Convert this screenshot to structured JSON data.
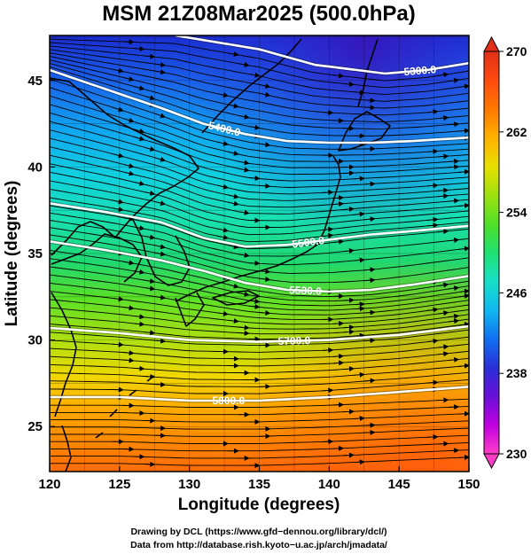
{
  "title": "MSM 21Z08Mar2025 (500.0hPa)",
  "credits": {
    "line1": "Drawing by DCL (https://www.gfd−dennou.org/library/dcl/)",
    "line2": "Data from http://database.rish.kyoto−u.ac.jp/arch/jmadata/"
  },
  "chart_data": {
    "type": "heatmap",
    "xlabel": "Longitude (degrees)",
    "ylabel": "Latitude  (degrees)",
    "xlim": [
      120,
      150
    ],
    "ylim": [
      22.4,
      47.6
    ],
    "xticks": [
      120,
      125,
      130,
      135,
      140,
      145,
      150
    ],
    "yticks": [
      25,
      30,
      35,
      40,
      45
    ],
    "colorbar": {
      "range": [
        230,
        270
      ],
      "ticks": [
        230,
        238,
        246,
        254,
        262,
        270
      ],
      "colors": [
        "#ff3ec8",
        "#c000e0",
        "#6a10d8",
        "#2a30d8",
        "#1070f0",
        "#10b8f0",
        "#18e0c8",
        "#20e070",
        "#50e028",
        "#a0e010",
        "#e8e000",
        "#ffb000",
        "#ff7800",
        "#ff4a10",
        "#e03018"
      ]
    },
    "contours": [
      {
        "label": "5300.0",
        "lon": [
          129,
          135,
          139,
          144,
          147,
          150
        ],
        "lat": [
          47.6,
          46.8,
          45.9,
          45.4,
          45.6,
          46.0
        ]
      },
      {
        "label": "5400.0",
        "lon": [
          120,
          124,
          128,
          131,
          134,
          137,
          140,
          143,
          146,
          150
        ],
        "lat": [
          45.6,
          44.5,
          43.4,
          42.5,
          41.9,
          41.5,
          41.4,
          41.4,
          41.5,
          41.7
        ]
      },
      {
        "label": "5500.0",
        "lon": [
          120,
          124,
          128,
          131,
          134,
          137,
          140,
          143,
          146,
          150
        ],
        "lat": [
          37.9,
          37.4,
          36.8,
          35.9,
          35.4,
          35.5,
          35.8,
          36.1,
          36.3,
          36.6
        ]
      },
      {
        "label": "5530.0",
        "lon": [
          120,
          124,
          128,
          131,
          134,
          137,
          140,
          143,
          146,
          150
        ],
        "lat": [
          35.7,
          35.2,
          34.6,
          34.0,
          33.3,
          32.9,
          32.8,
          32.9,
          33.2,
          33.7
        ]
      },
      {
        "label": "5700.0",
        "lon": [
          120,
          125,
          130,
          135,
          140,
          145,
          150
        ],
        "lat": [
          30.7,
          30.4,
          30.0,
          29.9,
          30.0,
          30.3,
          30.8
        ]
      },
      {
        "label": "5800.0",
        "lon": [
          120,
          125,
          130,
          135,
          140,
          145,
          150
        ],
        "lat": [
          26.7,
          26.7,
          26.5,
          26.5,
          26.7,
          27.0,
          27.3
        ]
      }
    ]
  }
}
